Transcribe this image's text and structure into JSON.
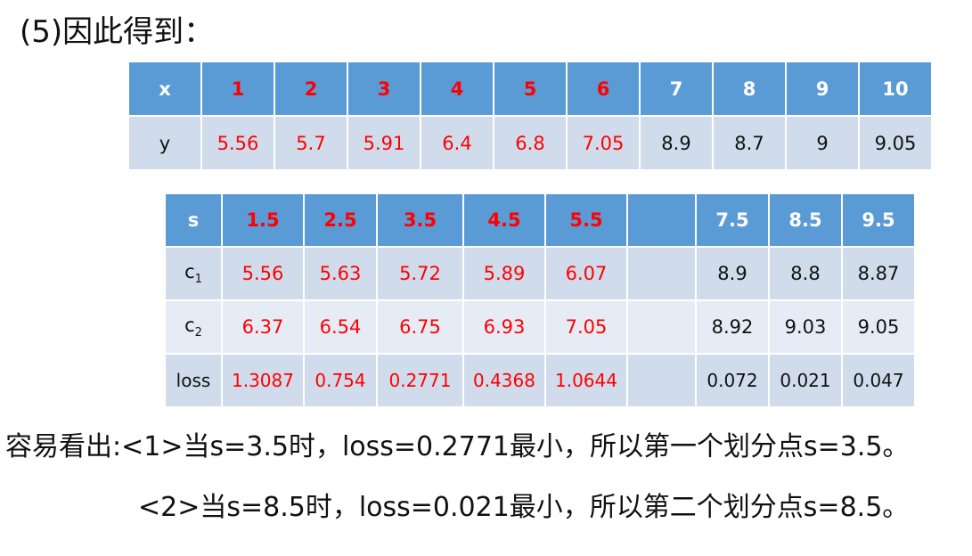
{
  "heading": "(5)因此得到：",
  "colors": {
    "header_fill": "#5b9bd5",
    "cell_fill": "#d0dceb",
    "highlight_text": "#ff0000"
  },
  "table1": {
    "x_label": "x",
    "y_label": "y",
    "x": [
      "1",
      "2",
      "3",
      "4",
      "5",
      "6",
      "7",
      "8",
      "9",
      "10"
    ],
    "y": [
      "5.56",
      "5.7",
      "5.91",
      "6.4",
      "6.8",
      "7.05",
      "8.9",
      "8.7",
      "9",
      "9.05"
    ],
    "highlighted_columns": 6
  },
  "table2": {
    "s_label": "s",
    "c1_label": "c",
    "c1_sub": "1",
    "c2_label": "c",
    "c2_sub": "2",
    "loss_label": "loss",
    "s": [
      "1.5",
      "2.5",
      "3.5",
      "4.5",
      "5.5",
      "",
      "7.5",
      "8.5",
      "9.5"
    ],
    "c1": [
      "5.56",
      "5.63",
      "5.72",
      "5.89",
      "6.07",
      "",
      "8.9",
      "8.8",
      "8.87"
    ],
    "c2": [
      "6.37",
      "6.54",
      "6.75",
      "6.93",
      "7.05",
      "",
      "8.92",
      "9.03",
      "9.05"
    ],
    "loss": [
      "1.3087",
      "0.754",
      "0.2771",
      "0.4368",
      "1.0644",
      "",
      "0.072",
      "0.021",
      "0.047"
    ],
    "highlighted_columns": 5
  },
  "conclusion": {
    "line1": "容易看出:<1>当s=3.5时，loss=0.2771最小，所以第一个划分点s=3.5。",
    "line2": "<2>当s=8.5时，loss=0.021最小，所以第二个划分点s=8.5。"
  }
}
